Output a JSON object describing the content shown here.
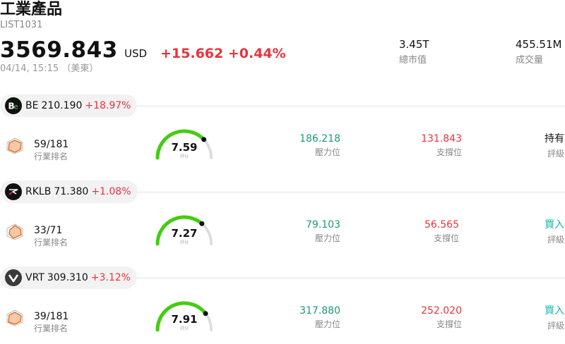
{
  "header": {
    "title": "工業產品",
    "code": "LIST1031",
    "price": "3569.843",
    "currency": "USD",
    "change": "+15.662 +0.44%",
    "timestamp": "04/14, 15:15 （美東）"
  },
  "stats": [
    {
      "value": "3.45T",
      "label": "總市值"
    },
    {
      "value": "455.51M",
      "label": "成交量"
    }
  ],
  "stocks": [
    {
      "ticker": "BE",
      "price": "210.190",
      "change": "+18.97%",
      "logo": "be-logo-icon",
      "rank": "59/181",
      "rank_label": "行業排名",
      "score": 7.59,
      "score_label": "評分",
      "resistance": "186.218",
      "resistance_label": "壓力位",
      "support": "131.843",
      "support_label": "支撐位",
      "rating": "持有",
      "rating_label": "評級",
      "rating_color": "#111111"
    },
    {
      "ticker": "RKLB",
      "price": "71.380",
      "change": "+1.08%",
      "logo": "rklb-logo-icon",
      "rank": "33/71",
      "rank_label": "行業排名",
      "score": 7.27,
      "score_label": "評分",
      "resistance": "79.103",
      "resistance_label": "壓力位",
      "support": "56.565",
      "support_label": "支撐位",
      "rating": "買入",
      "rating_label": "評級",
      "rating_color": "#18b4a6"
    },
    {
      "ticker": "VRT",
      "price": "309.310",
      "change": "+3.12%",
      "logo": "vrt-logo-icon",
      "rank": "39/181",
      "rank_label": "行業排名",
      "score": 7.91,
      "score_label": "評分",
      "resistance": "317.880",
      "resistance_label": "壓力位",
      "support": "252.020",
      "support_label": "支撐位",
      "rating": "買入",
      "rating_label": "評級",
      "rating_color": "#18b4a6"
    }
  ],
  "colors": {
    "up": "#e8333c",
    "green": "#1a9a74",
    "gauge": "#44cc11",
    "gauge_track": "#dddddd"
  }
}
